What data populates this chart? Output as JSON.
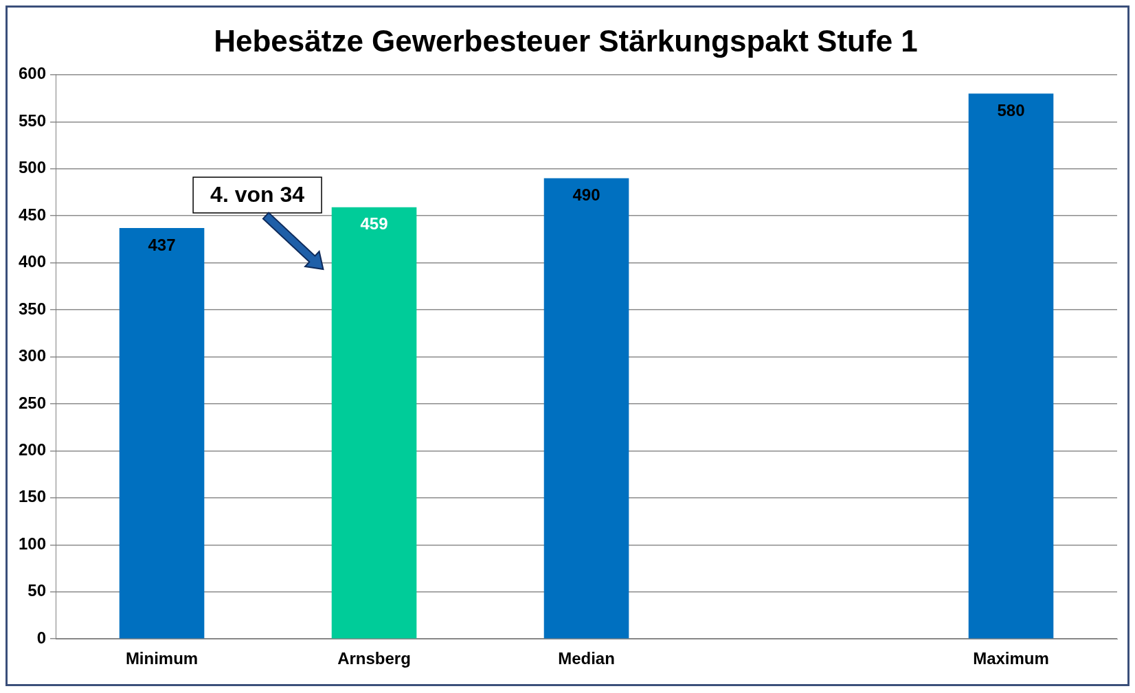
{
  "chart_data": {
    "type": "bar",
    "title": "Hebesätze Gewerbesteuer Stärkungspakt Stufe 1",
    "categories": [
      "Minimum",
      "Arnsberg",
      "Median",
      null,
      "Maximum"
    ],
    "values": [
      437,
      459,
      490,
      null,
      580
    ],
    "colors": [
      "#0070c0",
      "#00cc99",
      "#0070c0",
      "#0070c0",
      "#0070c0"
    ],
    "ylim": [
      0,
      600
    ],
    "yticks": [
      0,
      50,
      100,
      150,
      200,
      250,
      300,
      350,
      400,
      450,
      500,
      550,
      600
    ],
    "grid": "y",
    "legend": false,
    "data_labels": true,
    "annotations": [
      "4. von 34"
    ]
  }
}
